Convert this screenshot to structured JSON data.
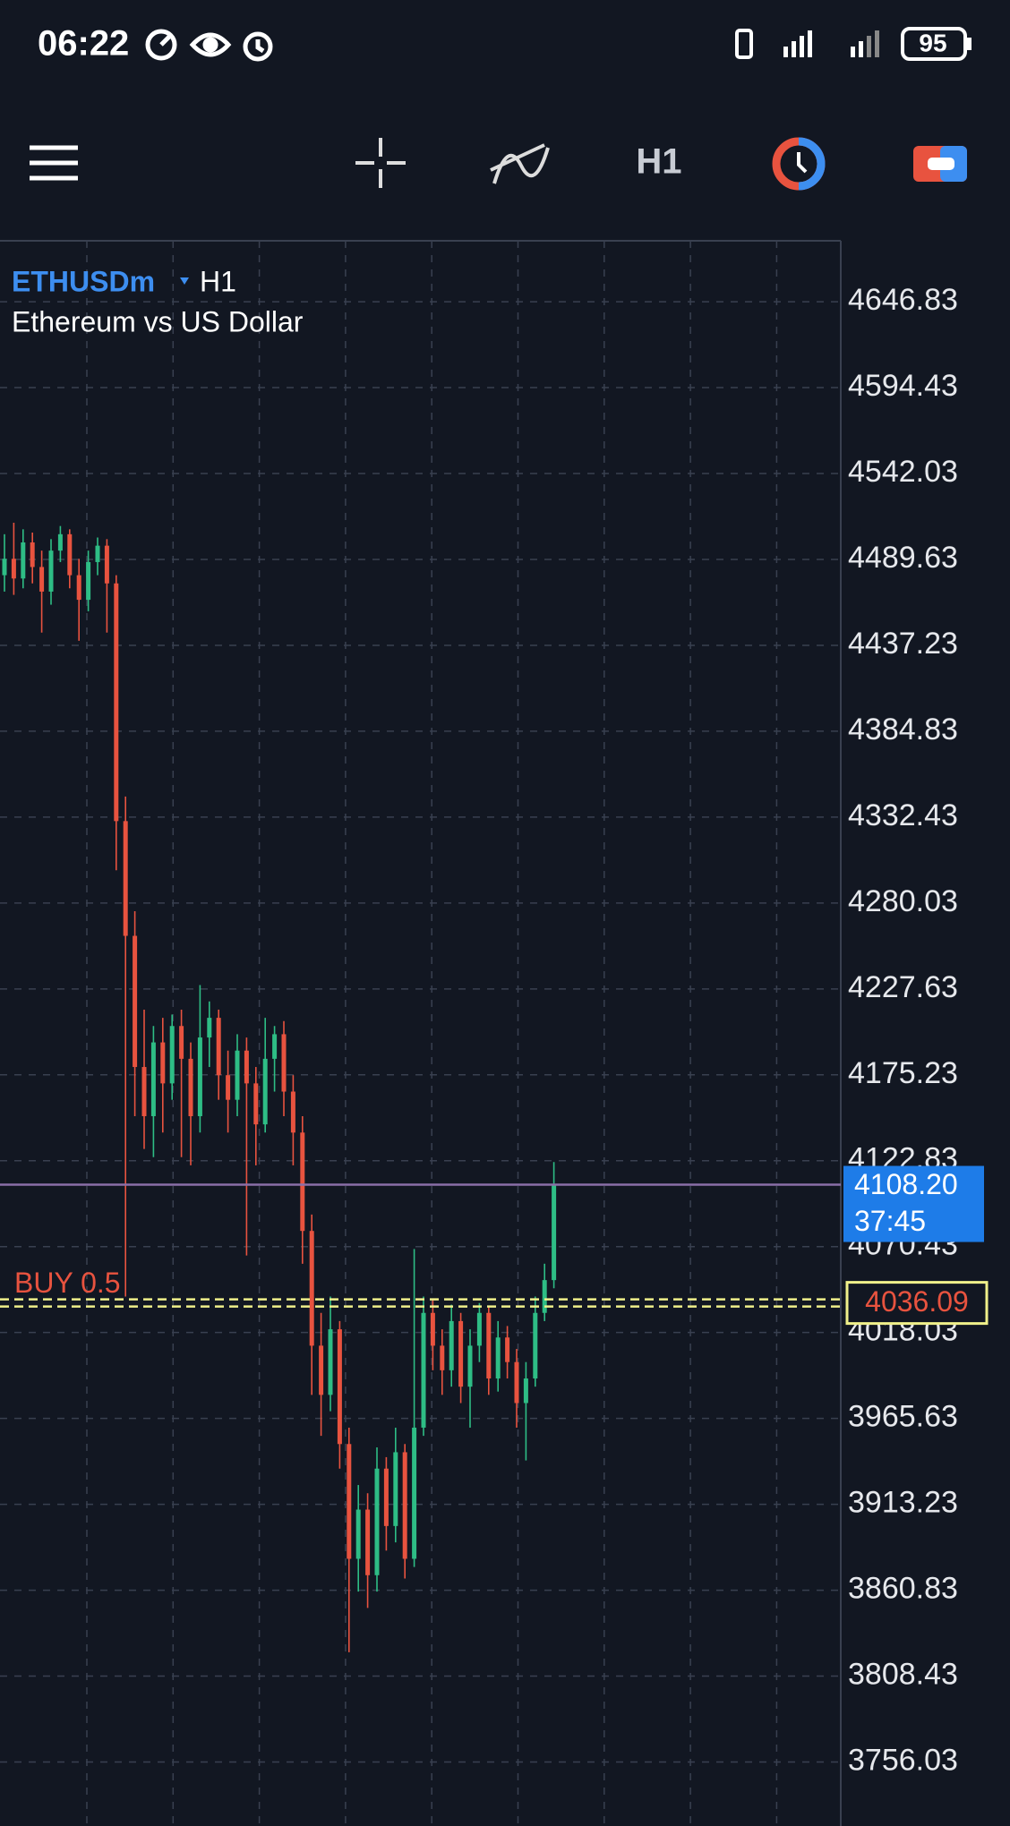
{
  "status_bar": {
    "time": "06:22",
    "battery": "95"
  },
  "toolbar": {
    "timeframe": "H1"
  },
  "chart_data": {
    "type": "candlestick",
    "symbol": "ETHUSDm",
    "timeframe": "H1",
    "subtitle": "Ethereum vs US Dollar",
    "up_color": "#2ebd85",
    "down_color": "#e8533f",
    "grid": true,
    "ylim": [
      3717,
      4684
    ],
    "yticks": [
      4646.83,
      4594.43,
      4542.03,
      4489.63,
      4437.23,
      4384.83,
      4332.43,
      4280.03,
      4227.63,
      4175.23,
      4122.83,
      4070.43,
      4018.03,
      3965.63,
      3913.23,
      3860.83,
      3808.43,
      3756.03
    ],
    "open": [
      4480,
      4490,
      4478,
      4500,
      4485,
      4470,
      4495,
      4505,
      4480,
      4465,
      4488,
      4498,
      4475,
      4330,
      4260,
      4180,
      4150,
      4195,
      4170,
      4205,
      4185,
      4150,
      4198,
      4210,
      4175,
      4160,
      4190,
      4170,
      4145,
      4185,
      4200,
      4165,
      4140,
      4080,
      4010,
      3980,
      4020,
      3950,
      3880,
      3910,
      3870,
      3935,
      3900,
      3945,
      3880,
      3960,
      4030,
      4010,
      3995,
      4025,
      3985,
      4010,
      4030,
      3990,
      4015,
      4000,
      3975,
      3990,
      4030,
      4050
    ],
    "high": [
      4505,
      4512,
      4508,
      4506,
      4495,
      4502,
      4510,
      4508,
      4490,
      4495,
      4503,
      4502,
      4480,
      4345,
      4275,
      4215,
      4205,
      4210,
      4212,
      4215,
      4195,
      4230,
      4220,
      4215,
      4190,
      4200,
      4198,
      4180,
      4210,
      4205,
      4208,
      4175,
      4150,
      4090,
      4030,
      4040,
      4025,
      3960,
      3925,
      3920,
      3948,
      3942,
      3960,
      3950,
      4069,
      4040,
      4038,
      4020,
      4035,
      4030,
      4020,
      4036,
      4034,
      4025,
      4022,
      4008,
      4000,
      4040,
      4060,
      4122
    ],
    "low": [
      4470,
      4468,
      4472,
      4475,
      4445,
      4462,
      4488,
      4472,
      4440,
      4458,
      4480,
      4445,
      4300,
      4040,
      4150,
      4130,
      4125,
      4140,
      4160,
      4125,
      4120,
      4140,
      4180,
      4160,
      4140,
      4150,
      4065,
      4120,
      4140,
      4165,
      4150,
      4120,
      4060,
      3980,
      3955,
      3970,
      3935,
      3823,
      3860,
      3850,
      3860,
      3885,
      3890,
      3868,
      3875,
      3955,
      3995,
      3980,
      3985,
      3975,
      3960,
      4000,
      3980,
      3982,
      3990,
      3960,
      3940,
      3985,
      4025,
      4045
    ],
    "close": [
      4490,
      4478,
      4500,
      4485,
      4470,
      4495,
      4505,
      4480,
      4465,
      4488,
      4498,
      4475,
      4330,
      4260,
      4180,
      4150,
      4195,
      4170,
      4205,
      4185,
      4150,
      4198,
      4210,
      4175,
      4160,
      4190,
      4170,
      4145,
      4185,
      4200,
      4165,
      4140,
      4080,
      4010,
      3980,
      4020,
      3950,
      3880,
      3910,
      3870,
      3935,
      3900,
      3945,
      3880,
      3960,
      4030,
      4010,
      3995,
      4025,
      3985,
      4010,
      4030,
      3990,
      4015,
      4000,
      3975,
      3990,
      4030,
      4050,
      4108.2
    ],
    "bid": {
      "value": 4108.2,
      "label": "4108.20"
    },
    "countdown": "37:45",
    "order": {
      "label": "BUY 0.5",
      "price": 4036.09
    }
  }
}
